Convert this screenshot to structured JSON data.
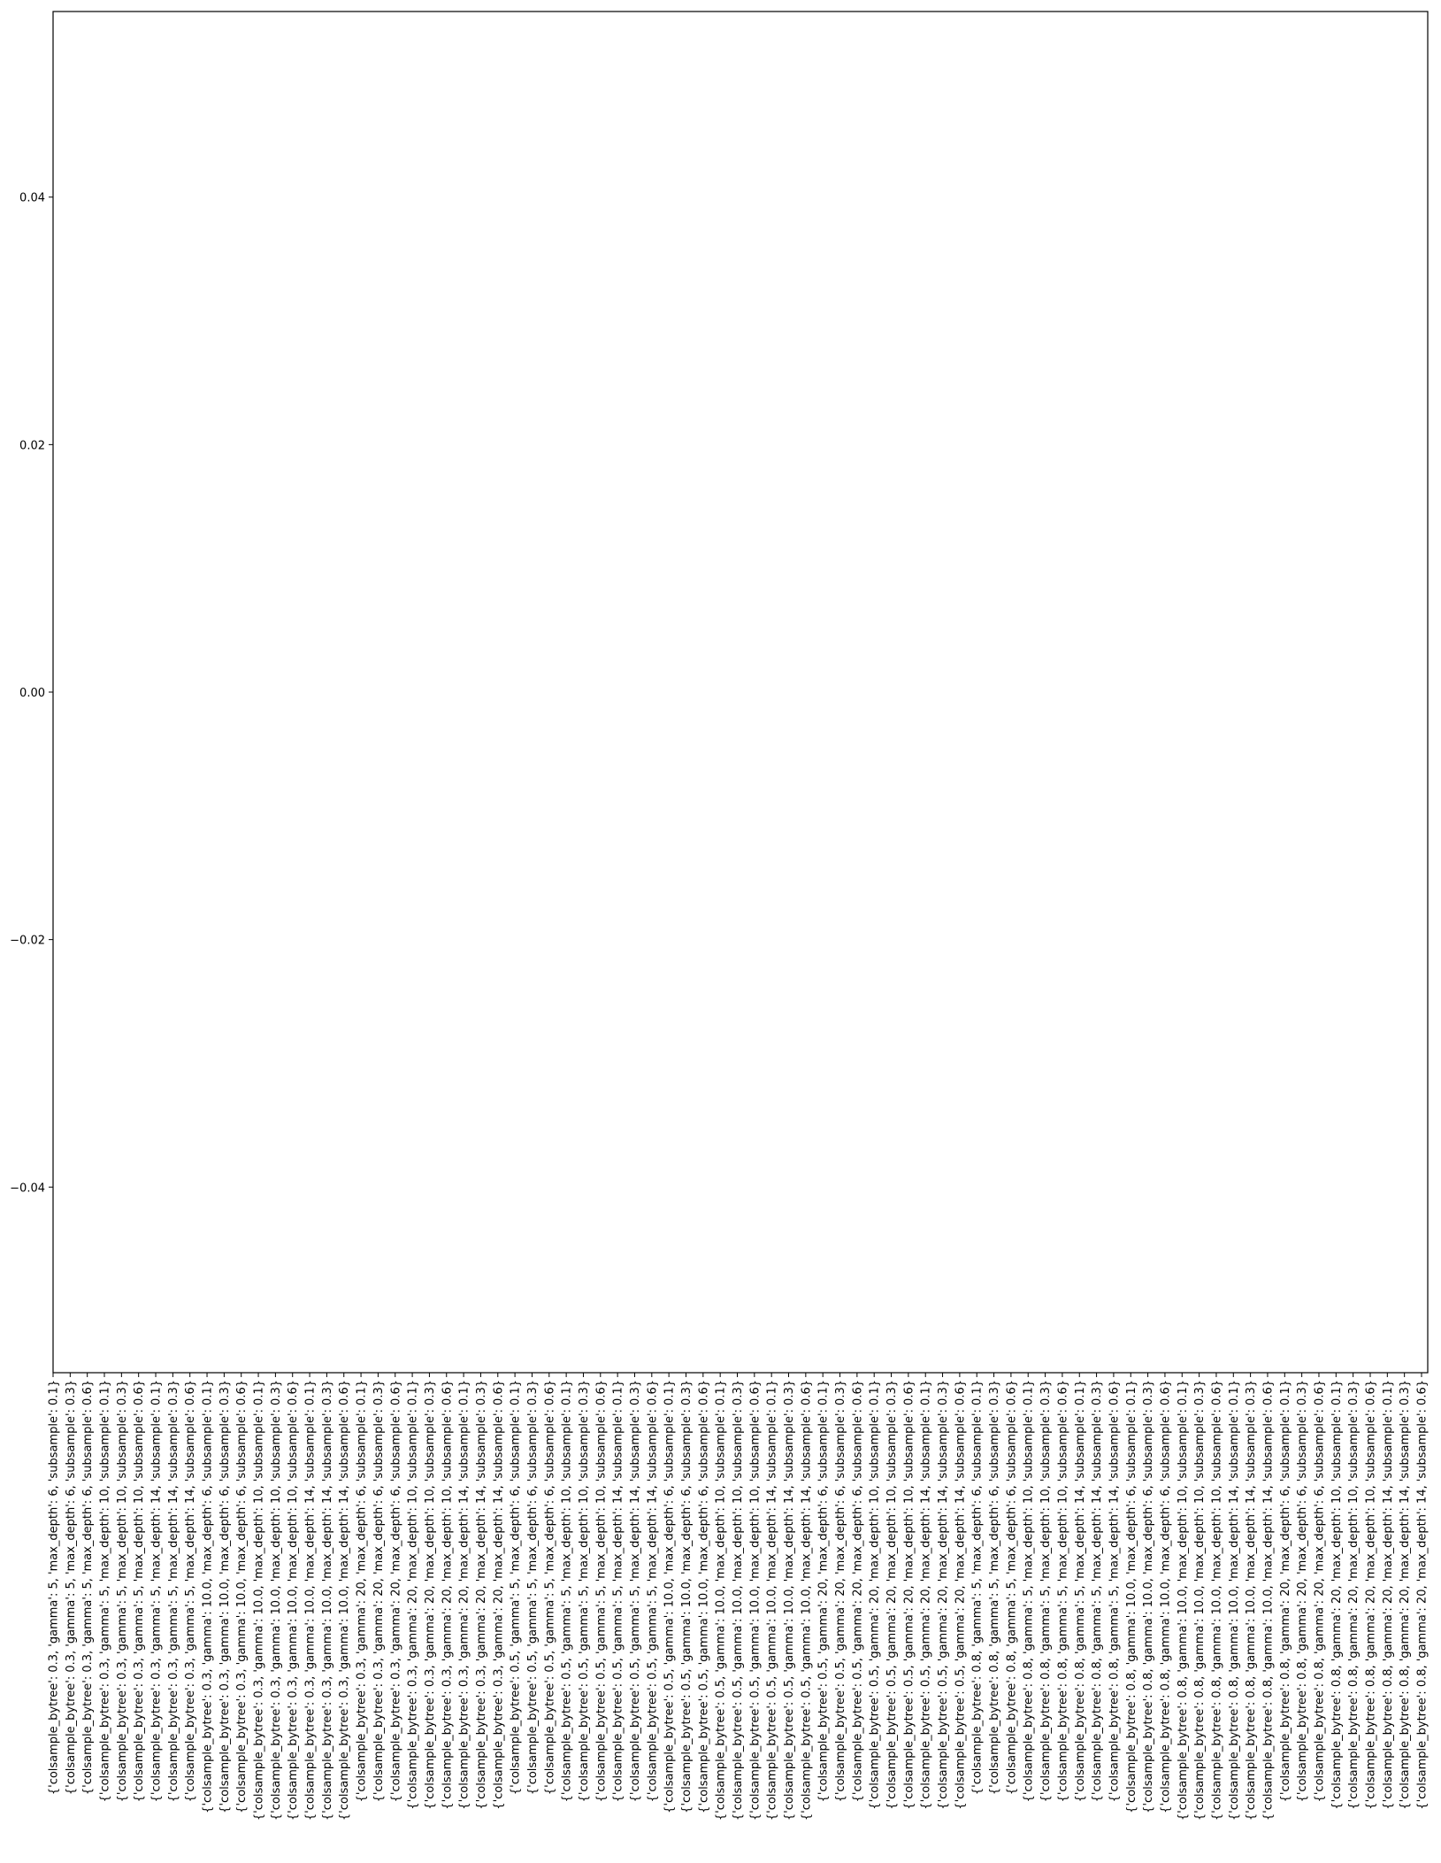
{
  "chart_data": {
    "type": "bar",
    "title": "",
    "xlabel": "",
    "ylabel": "",
    "ylim": [
      -0.055,
      0.055
    ],
    "yticks": [
      -0.04,
      -0.02,
      0.0,
      0.02,
      0.04
    ],
    "ytick_labels": [
      "−0.04",
      "−0.02",
      "0.00",
      "0.02",
      "0.04"
    ],
    "grid": false,
    "categories": [
      "{'colsample_bytree': 0.3, 'gamma': 5, 'max_depth': 6, 'subsample': 0.1}",
      "{'colsample_bytree': 0.3, 'gamma': 5, 'max_depth': 6, 'subsample': 0.3}",
      "{'colsample_bytree': 0.3, 'gamma': 5, 'max_depth': 6, 'subsample': 0.6}",
      "{'colsample_bytree': 0.3, 'gamma': 5, 'max_depth': 10, 'subsample': 0.1}",
      "{'colsample_bytree': 0.3, 'gamma': 5, 'max_depth': 10, 'subsample': 0.3}",
      "{'colsample_bytree': 0.3, 'gamma': 5, 'max_depth': 10, 'subsample': 0.6}",
      "{'colsample_bytree': 0.3, 'gamma': 5, 'max_depth': 14, 'subsample': 0.1}",
      "{'colsample_bytree': 0.3, 'gamma': 5, 'max_depth': 14, 'subsample': 0.3}",
      "{'colsample_bytree': 0.3, 'gamma': 5, 'max_depth': 14, 'subsample': 0.6}",
      "{'colsample_bytree': 0.3, 'gamma': 10.0, 'max_depth': 6, 'subsample': 0.1}",
      "{'colsample_bytree': 0.3, 'gamma': 10.0, 'max_depth': 6, 'subsample': 0.3}",
      "{'colsample_bytree': 0.3, 'gamma': 10.0, 'max_depth': 6, 'subsample': 0.6}",
      "{'colsample_bytree': 0.3, 'gamma': 10.0, 'max_depth': 10, 'subsample': 0.1}",
      "{'colsample_bytree': 0.3, 'gamma': 10.0, 'max_depth': 10, 'subsample': 0.3}",
      "{'colsample_bytree': 0.3, 'gamma': 10.0, 'max_depth': 10, 'subsample': 0.6}",
      "{'colsample_bytree': 0.3, 'gamma': 10.0, 'max_depth': 14, 'subsample': 0.1}",
      "{'colsample_bytree': 0.3, 'gamma': 10.0, 'max_depth': 14, 'subsample': 0.3}",
      "{'colsample_bytree': 0.3, 'gamma': 10.0, 'max_depth': 14, 'subsample': 0.6}",
      "{'colsample_bytree': 0.3, 'gamma': 20, 'max_depth': 6, 'subsample': 0.1}",
      "{'colsample_bytree': 0.3, 'gamma': 20, 'max_depth': 6, 'subsample': 0.3}",
      "{'colsample_bytree': 0.3, 'gamma': 20, 'max_depth': 6, 'subsample': 0.6}",
      "{'colsample_bytree': 0.3, 'gamma': 20, 'max_depth': 10, 'subsample': 0.1}",
      "{'colsample_bytree': 0.3, 'gamma': 20, 'max_depth': 10, 'subsample': 0.3}",
      "{'colsample_bytree': 0.3, 'gamma': 20, 'max_depth': 10, 'subsample': 0.6}",
      "{'colsample_bytree': 0.3, 'gamma': 20, 'max_depth': 14, 'subsample': 0.1}",
      "{'colsample_bytree': 0.3, 'gamma': 20, 'max_depth': 14, 'subsample': 0.3}",
      "{'colsample_bytree': 0.3, 'gamma': 20, 'max_depth': 14, 'subsample': 0.6}",
      "{'colsample_bytree': 0.5, 'gamma': 5, 'max_depth': 6, 'subsample': 0.1}",
      "{'colsample_bytree': 0.5, 'gamma': 5, 'max_depth': 6, 'subsample': 0.3}",
      "{'colsample_bytree': 0.5, 'gamma': 5, 'max_depth': 6, 'subsample': 0.6}",
      "{'colsample_bytree': 0.5, 'gamma': 5, 'max_depth': 10, 'subsample': 0.1}",
      "{'colsample_bytree': 0.5, 'gamma': 5, 'max_depth': 10, 'subsample': 0.3}",
      "{'colsample_bytree': 0.5, 'gamma': 5, 'max_depth': 10, 'subsample': 0.6}",
      "{'colsample_bytree': 0.5, 'gamma': 5, 'max_depth': 14, 'subsample': 0.1}",
      "{'colsample_bytree': 0.5, 'gamma': 5, 'max_depth': 14, 'subsample': 0.3}",
      "{'colsample_bytree': 0.5, 'gamma': 5, 'max_depth': 14, 'subsample': 0.6}",
      "{'colsample_bytree': 0.5, 'gamma': 10.0, 'max_depth': 6, 'subsample': 0.1}",
      "{'colsample_bytree': 0.5, 'gamma': 10.0, 'max_depth': 6, 'subsample': 0.3}",
      "{'colsample_bytree': 0.5, 'gamma': 10.0, 'max_depth': 6, 'subsample': 0.6}",
      "{'colsample_bytree': 0.5, 'gamma': 10.0, 'max_depth': 10, 'subsample': 0.1}",
      "{'colsample_bytree': 0.5, 'gamma': 10.0, 'max_depth': 10, 'subsample': 0.3}",
      "{'colsample_bytree': 0.5, 'gamma': 10.0, 'max_depth': 10, 'subsample': 0.6}",
      "{'colsample_bytree': 0.5, 'gamma': 10.0, 'max_depth': 14, 'subsample': 0.1}",
      "{'colsample_bytree': 0.5, 'gamma': 10.0, 'max_depth': 14, 'subsample': 0.3}",
      "{'colsample_bytree': 0.5, 'gamma': 10.0, 'max_depth': 14, 'subsample': 0.6}",
      "{'colsample_bytree': 0.5, 'gamma': 20, 'max_depth': 6, 'subsample': 0.1}",
      "{'colsample_bytree': 0.5, 'gamma': 20, 'max_depth': 6, 'subsample': 0.3}",
      "{'colsample_bytree': 0.5, 'gamma': 20, 'max_depth': 6, 'subsample': 0.6}",
      "{'colsample_bytree': 0.5, 'gamma': 20, 'max_depth': 10, 'subsample': 0.1}",
      "{'colsample_bytree': 0.5, 'gamma': 20, 'max_depth': 10, 'subsample': 0.3}",
      "{'colsample_bytree': 0.5, 'gamma': 20, 'max_depth': 10, 'subsample': 0.6}",
      "{'colsample_bytree': 0.5, 'gamma': 20, 'max_depth': 14, 'subsample': 0.1}",
      "{'colsample_bytree': 0.5, 'gamma': 20, 'max_depth': 14, 'subsample': 0.3}",
      "{'colsample_bytree': 0.5, 'gamma': 20, 'max_depth': 14, 'subsample': 0.6}",
      "{'colsample_bytree': 0.8, 'gamma': 5, 'max_depth': 6, 'subsample': 0.1}",
      "{'colsample_bytree': 0.8, 'gamma': 5, 'max_depth': 6, 'subsample': 0.3}",
      "{'colsample_bytree': 0.8, 'gamma': 5, 'max_depth': 6, 'subsample': 0.6}",
      "{'colsample_bytree': 0.8, 'gamma': 5, 'max_depth': 10, 'subsample': 0.1}",
      "{'colsample_bytree': 0.8, 'gamma': 5, 'max_depth': 10, 'subsample': 0.3}",
      "{'colsample_bytree': 0.8, 'gamma': 5, 'max_depth': 10, 'subsample': 0.6}",
      "{'colsample_bytree': 0.8, 'gamma': 5, 'max_depth': 14, 'subsample': 0.1}",
      "{'colsample_bytree': 0.8, 'gamma': 5, 'max_depth': 14, 'subsample': 0.3}",
      "{'colsample_bytree': 0.8, 'gamma': 5, 'max_depth': 14, 'subsample': 0.6}",
      "{'colsample_bytree': 0.8, 'gamma': 10.0, 'max_depth': 6, 'subsample': 0.1}",
      "{'colsample_bytree': 0.8, 'gamma': 10.0, 'max_depth': 6, 'subsample': 0.3}",
      "{'colsample_bytree': 0.8, 'gamma': 10.0, 'max_depth': 6, 'subsample': 0.6}",
      "{'colsample_bytree': 0.8, 'gamma': 10.0, 'max_depth': 10, 'subsample': 0.1}",
      "{'colsample_bytree': 0.8, 'gamma': 10.0, 'max_depth': 10, 'subsample': 0.3}",
      "{'colsample_bytree': 0.8, 'gamma': 10.0, 'max_depth': 10, 'subsample': 0.6}",
      "{'colsample_bytree': 0.8, 'gamma': 10.0, 'max_depth': 14, 'subsample': 0.1}",
      "{'colsample_bytree': 0.8, 'gamma': 10.0, 'max_depth': 14, 'subsample': 0.3}",
      "{'colsample_bytree': 0.8, 'gamma': 10.0, 'max_depth': 14, 'subsample': 0.6}",
      "{'colsample_bytree': 0.8, 'gamma': 20, 'max_depth': 6, 'subsample': 0.1}",
      "{'colsample_bytree': 0.8, 'gamma': 20, 'max_depth': 6, 'subsample': 0.3}",
      "{'colsample_bytree': 0.8, 'gamma': 20, 'max_depth': 6, 'subsample': 0.6}",
      "{'colsample_bytree': 0.8, 'gamma': 20, 'max_depth': 10, 'subsample': 0.1}",
      "{'colsample_bytree': 0.8, 'gamma': 20, 'max_depth': 10, 'subsample': 0.3}",
      "{'colsample_bytree': 0.8, 'gamma': 20, 'max_depth': 10, 'subsample': 0.6}",
      "{'colsample_bytree': 0.8, 'gamma': 20, 'max_depth': 14, 'subsample': 0.1}",
      "{'colsample_bytree': 0.8, 'gamma': 20, 'max_depth': 14, 'subsample': 0.3}",
      "{'colsample_bytree': 0.8, 'gamma': 20, 'max_depth': 14, 'subsample': 0.6}"
    ],
    "values": [
      0,
      0,
      0,
      0,
      0,
      0,
      0,
      0,
      0,
      0,
      0,
      0,
      0,
      0,
      0,
      0,
      0,
      0,
      0,
      0,
      0,
      0,
      0,
      0,
      0,
      0,
      0,
      0,
      0,
      0,
      0,
      0,
      0,
      0,
      0,
      0,
      0,
      0,
      0,
      0,
      0,
      0,
      0,
      0,
      0,
      0,
      0,
      0,
      0,
      0,
      0,
      0,
      0,
      0,
      0,
      0,
      0,
      0,
      0,
      0,
      0,
      0,
      0,
      0,
      0,
      0,
      0,
      0,
      0,
      0,
      0,
      0,
      0,
      0,
      0,
      0,
      0,
      0,
      0,
      0,
      0
    ],
    "colors": {
      "axis": "#000000",
      "background": "#ffffff",
      "bar": "#1f77b4"
    }
  }
}
